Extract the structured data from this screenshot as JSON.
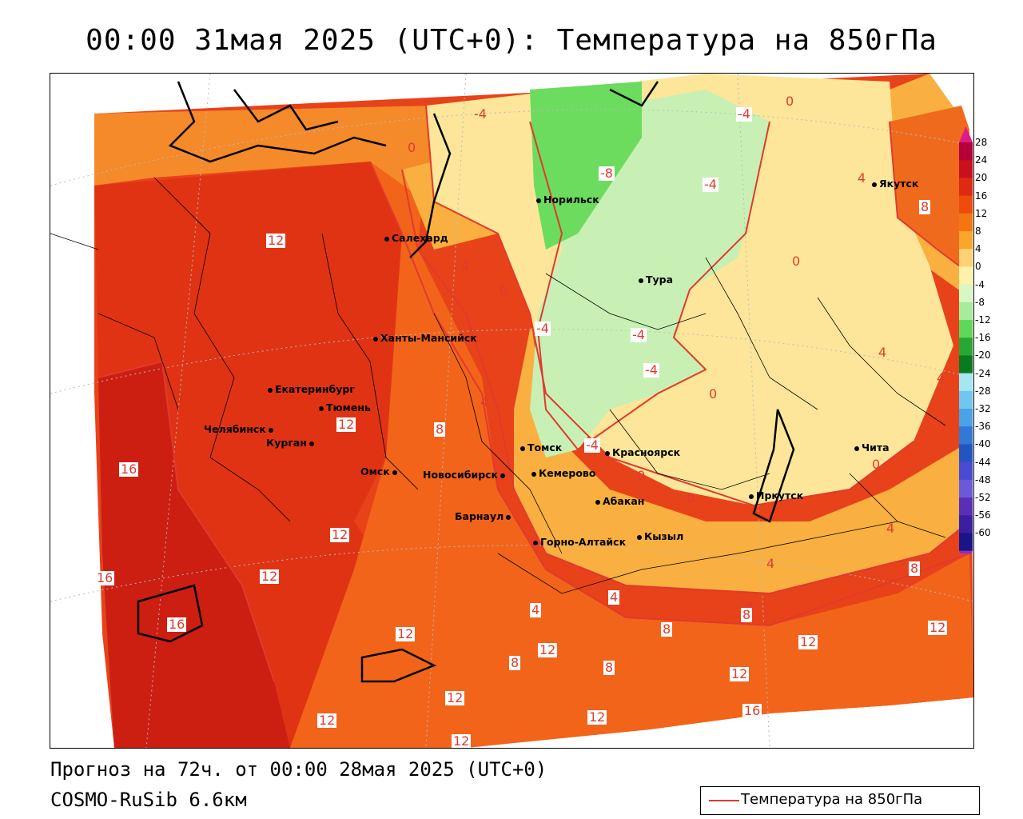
{
  "title": "00:00 31мая 2025 (UTC+0): Температура на 850гПа",
  "footer": {
    "forecast": "Прогноз на 72ч. от 00:00 28мая 2025 (UTC+0)",
    "model": "COSMO-RuSib 6.6км"
  },
  "legend": {
    "label": "Температура на 850гПа"
  },
  "colorbar": {
    "labels": [
      "28",
      "24",
      "20",
      "16",
      "12",
      "8",
      "4",
      "0",
      "-4",
      "-8",
      "-12",
      "-16",
      "-20",
      "-24",
      "-28",
      "-32",
      "-36",
      "-40",
      "-44",
      "-48",
      "-52",
      "-56",
      "-60"
    ],
    "colors": [
      "#b5003c",
      "#c8101e",
      "#de2a12",
      "#f04a0c",
      "#f5760f",
      "#f9a62a",
      "#fcd275",
      "#fdf2a8",
      "#d7f7c5",
      "#a6ec9a",
      "#5fd85a",
      "#27a835",
      "#0a7a1f",
      "#a4e6f2",
      "#6fc6ee",
      "#4aa2e8",
      "#3079d6",
      "#2355c2",
      "#4a4ad2",
      "#6a5ad9",
      "#5a2fb8",
      "#3a1fa0",
      "#1b1488"
    ],
    "top_arrow_color": "#e11a8a",
    "bottom_arrow_color": "#8a2fc8"
  },
  "cities": [
    {
      "name": "Норильск"
    },
    {
      "name": "Якутск"
    },
    {
      "name": "Салехард"
    },
    {
      "name": "Тура"
    },
    {
      "name": "Ханты-Мансийск"
    },
    {
      "name": "Екатеринбург"
    },
    {
      "name": "Тюмень"
    },
    {
      "name": "Челябинск"
    },
    {
      "name": "Курган"
    },
    {
      "name": "Омск"
    },
    {
      "name": "Новосибирск"
    },
    {
      "name": "Томск"
    },
    {
      "name": "Красноярск"
    },
    {
      "name": "Кемерово"
    },
    {
      "name": "Абакан"
    },
    {
      "name": "Барнаул"
    },
    {
      "name": "Иркутск"
    },
    {
      "name": "Чита"
    },
    {
      "name": "Горно-Алтайск"
    },
    {
      "name": "Кызыл"
    }
  ],
  "isolines": [
    "-4",
    "-4",
    "0",
    "-8",
    "-4",
    "0",
    "4",
    "12",
    "8",
    "4",
    "0",
    "-4",
    "4",
    "-4",
    "4",
    "0",
    "4",
    "0",
    "-4",
    "0",
    "-4",
    "8",
    "12",
    "0",
    "16",
    "16",
    "12",
    "12",
    "4",
    "16",
    "0",
    "4",
    "4",
    "8",
    "4",
    "8",
    "12",
    "12",
    "8",
    "12",
    "12",
    "8",
    "12",
    "16",
    "12",
    "12",
    "12",
    "4",
    "8",
    "12"
  ],
  "colors": {
    "isoline": "#e03a2e",
    "border": "#000000"
  }
}
